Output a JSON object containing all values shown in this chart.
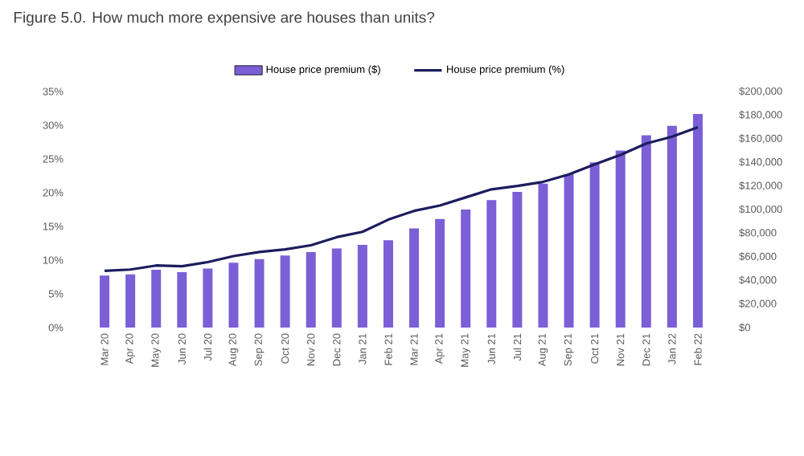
{
  "chart_data": {
    "type": "bar",
    "title": "Figure 5.0. How much more expensive are houses than units?",
    "categories": [
      "Mar 20",
      "Apr 20",
      "May 20",
      "Jun 20",
      "Jul 20",
      "Aug 20",
      "Sep 20",
      "Oct 20",
      "Nov 20",
      "Dec 20",
      "Jan 21",
      "Feb 21",
      "Mar 21",
      "Apr 21",
      "May 21",
      "Jun 21",
      "Jul 21",
      "Aug 21",
      "Sep 21",
      "Oct 21",
      "Nov 21",
      "Dec 21",
      "Jan 22",
      "Feb 22"
    ],
    "series": [
      {
        "name": "House price premium ($)",
        "axis": "y2",
        "color": "#7b5fd6",
        "values": [
          44000,
          45000,
          49000,
          47000,
          50000,
          55000,
          58000,
          61000,
          64000,
          67000,
          70000,
          74000,
          84000,
          92000,
          100000,
          108000,
          115000,
          122000,
          130000,
          140000,
          150000,
          163000,
          171000,
          181000
        ]
      },
      {
        "name": "House price premium (%)",
        "type": "line",
        "axis": "y",
        "color": "#1c1c5e",
        "values": [
          8.4,
          8.6,
          9.2,
          9.1,
          9.7,
          10.6,
          11.2,
          11.6,
          12.2,
          13.4,
          14.2,
          16.0,
          17.3,
          18.1,
          19.3,
          20.5,
          21.0,
          21.6,
          22.7,
          24.2,
          25.6,
          27.3,
          28.3,
          29.7
        ]
      }
    ],
    "ylim": [
      0,
      35
    ],
    "yticks": [
      {
        "value": 0,
        "label": "0%"
      },
      {
        "value": 5,
        "label": "5%"
      },
      {
        "value": 10,
        "label": "10%"
      },
      {
        "value": 15,
        "label": "15%"
      },
      {
        "value": 20,
        "label": "20%"
      },
      {
        "value": 25,
        "label": "25%"
      },
      {
        "value": 30,
        "label": "30%"
      },
      {
        "value": 35,
        "label": "35%"
      }
    ],
    "y2lim": [
      0,
      200000
    ],
    "y2ticks": [
      {
        "value": 0,
        "label": "$0"
      },
      {
        "value": 20000,
        "label": "$20,000"
      },
      {
        "value": 40000,
        "label": "$40,000"
      },
      {
        "value": 60000,
        "label": "$60,000"
      },
      {
        "value": 80000,
        "label": "$80,000"
      },
      {
        "value": 100000,
        "label": "$100,000"
      },
      {
        "value": 120000,
        "label": "$120,000"
      },
      {
        "value": 140000,
        "label": "$140,000"
      },
      {
        "value": 160000,
        "label": "$160,000"
      },
      {
        "value": 180000,
        "label": "$180,000"
      },
      {
        "value": 200000,
        "label": "$200,000"
      }
    ],
    "legend": "top"
  }
}
